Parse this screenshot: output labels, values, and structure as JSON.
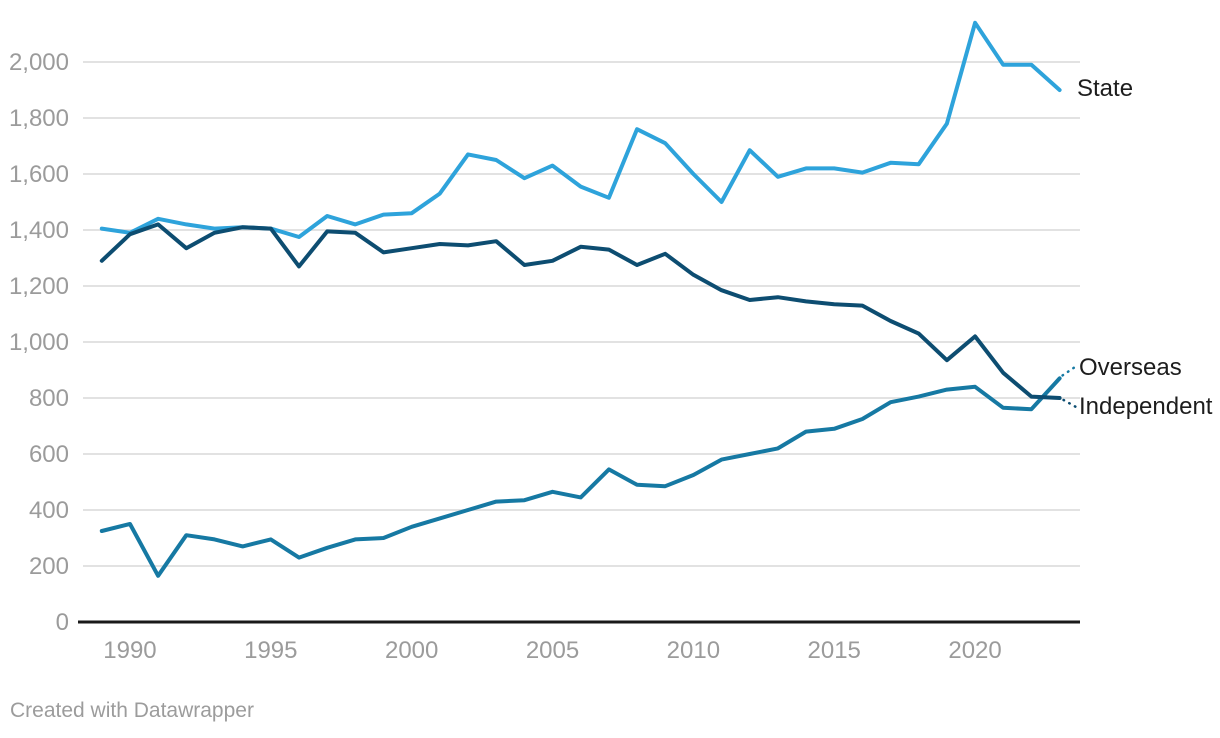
{
  "attribution": "Created with Datawrapper",
  "labels": {
    "state": "State",
    "overseas": "Overseas",
    "independent": "Independent"
  },
  "colors": {
    "state": "#2EA3DB",
    "overseas": "#1679A3",
    "independent": "#0D4D71",
    "grid": "#e2e2e2",
    "baseline": "#1a1a1a",
    "tick_text": "#9b9b9b",
    "label_text": "#1d1d1d",
    "background": "#ffffff"
  },
  "chart_data": {
    "type": "line",
    "title": "",
    "xlabel": "",
    "ylabel": "",
    "grid": "horizontal",
    "legend_position": "right-end-labels",
    "xlim": [
      1989,
      2023
    ],
    "ylim": [
      0,
      2200
    ],
    "x": [
      1989,
      1990,
      1991,
      1992,
      1993,
      1994,
      1995,
      1996,
      1997,
      1998,
      1999,
      2000,
      2001,
      2002,
      2003,
      2004,
      2005,
      2006,
      2007,
      2008,
      2009,
      2010,
      2011,
      2012,
      2013,
      2014,
      2015,
      2016,
      2017,
      2018,
      2019,
      2020,
      2021,
      2022,
      2023
    ],
    "xticks": [
      1990,
      1995,
      2000,
      2005,
      2010,
      2015,
      2020
    ],
    "yticks": [
      0,
      200,
      400,
      600,
      800,
      1000,
      1200,
      1400,
      1600,
      1800,
      2000
    ],
    "ytick_labels": [
      "0",
      "200",
      "400",
      "600",
      "800",
      "1,000",
      "1,200",
      "1,400",
      "1,600",
      "1,800",
      "2,000"
    ],
    "series": [
      {
        "name": "State",
        "color": "#2EA3DB",
        "values": [
          1405,
          1390,
          1440,
          1420,
          1405,
          1410,
          1405,
          1375,
          1450,
          1420,
          1455,
          1460,
          1530,
          1670,
          1650,
          1585,
          1630,
          1555,
          1515,
          1760,
          1710,
          1600,
          1500,
          1685,
          1590,
          1620,
          1620,
          1605,
          1640,
          1635,
          1780,
          2140,
          1990,
          1990,
          1900
        ]
      },
      {
        "name": "Overseas",
        "color": "#1679A3",
        "values": [
          325,
          350,
          165,
          310,
          295,
          270,
          295,
          230,
          265,
          295,
          300,
          340,
          370,
          400,
          430,
          435,
          465,
          445,
          545,
          490,
          485,
          525,
          580,
          600,
          620,
          680,
          690,
          725,
          785,
          805,
          830,
          840,
          765,
          760,
          870
        ]
      },
      {
        "name": "Independent",
        "color": "#0D4D71",
        "values": [
          1290,
          1385,
          1420,
          1335,
          1390,
          1410,
          1405,
          1270,
          1395,
          1390,
          1320,
          1335,
          1350,
          1345,
          1360,
          1275,
          1290,
          1340,
          1330,
          1275,
          1315,
          1240,
          1185,
          1150,
          1160,
          1145,
          1135,
          1130,
          1075,
          1030,
          935,
          1020,
          890,
          805,
          800
        ]
      }
    ]
  }
}
